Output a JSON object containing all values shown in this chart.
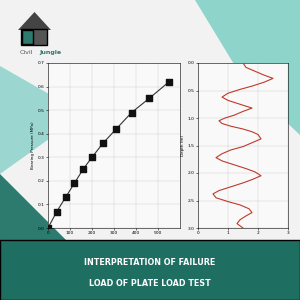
{
  "bg_color": "#f2f2f2",
  "teal_dark": "#2d7a6e",
  "teal_light": "#7ecfc5",
  "banner_color": "#1e6e62",
  "banner_text_line1": "INTERPRETATION OF FAILURE",
  "banner_text_line2": "LOAD OF PLATE LOAD TEST",
  "banner_text_color": "#ffffff",
  "left_chart": {
    "x": [
      0,
      40,
      80,
      120,
      160,
      200,
      250,
      310,
      380,
      460,
      550
    ],
    "y": [
      0,
      0.07,
      0.13,
      0.19,
      0.25,
      0.3,
      0.36,
      0.42,
      0.49,
      0.55,
      0.62
    ],
    "ylabel": "Bearing Pressure (MPa)",
    "xlim": [
      0,
      600
    ],
    "ylim": [
      0,
      0.7
    ],
    "xticks": [
      0,
      100,
      200,
      300,
      400,
      500
    ],
    "yticks": [
      0.0,
      0.1,
      0.2,
      0.3,
      0.4,
      0.5,
      0.6,
      0.7
    ],
    "line_color": "#333333",
    "marker": "s",
    "marker_color": "#111111",
    "marker_size": 3
  },
  "right_chart": {
    "depth": [
      0.0,
      0.08,
      0.15,
      0.22,
      0.28,
      0.35,
      0.42,
      0.48,
      0.55,
      0.62,
      0.68,
      0.75,
      0.82,
      0.88,
      0.95,
      1.0,
      1.05,
      1.1,
      1.15,
      1.2,
      1.25,
      1.3,
      1.38,
      1.45,
      1.52,
      1.58,
      1.65,
      1.72,
      1.78,
      1.85,
      1.92,
      1.98,
      2.05,
      2.12,
      2.18,
      2.25,
      2.32,
      2.38,
      2.45,
      2.52,
      2.58,
      2.65,
      2.72,
      2.78,
      2.85,
      2.92,
      3.0
    ],
    "x": [
      1.5,
      1.6,
      1.9,
      2.2,
      2.5,
      2.2,
      1.8,
      1.4,
      1.0,
      0.8,
      1.0,
      1.4,
      1.8,
      1.5,
      1.2,
      0.9,
      0.7,
      0.8,
      1.1,
      1.5,
      1.8,
      2.0,
      2.1,
      1.8,
      1.5,
      1.1,
      0.8,
      0.6,
      0.8,
      1.2,
      1.6,
      1.9,
      2.1,
      1.8,
      1.5,
      1.1,
      0.7,
      0.5,
      0.6,
      1.0,
      1.4,
      1.7,
      1.8,
      1.6,
      1.4,
      1.3,
      1.5
    ],
    "ylabel": "Depth (m)",
    "xlim": [
      0,
      3
    ],
    "ylim": [
      3.0,
      0.0
    ],
    "xticks": [
      0,
      1,
      2,
      3
    ],
    "yticks": [
      0.0,
      0.5,
      1.0,
      1.5,
      2.0,
      2.5,
      3.0
    ],
    "line_color": "#c0392b"
  },
  "logo_text1": "Civil",
  "logo_text2": "Jungle"
}
